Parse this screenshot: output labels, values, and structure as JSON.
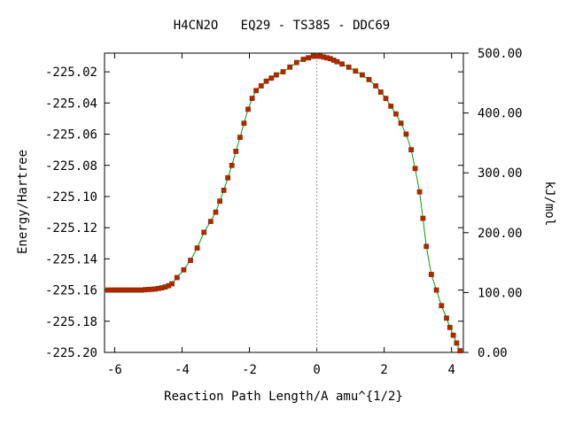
{
  "chart_data": {
    "type": "line",
    "title": "H4CN2O   EQ29 - TS385 - DDC69",
    "xlabel": "Reaction Path Length/A amu^{1/2}",
    "ylabel": "Energy/Hartree",
    "y2label": "kJ/mol",
    "xlim": [
      -6.3,
      4.35
    ],
    "ylim": [
      -225.2,
      -225.008
    ],
    "y2lim": [
      0,
      500
    ],
    "xticks": [
      -6,
      -4,
      -2,
      0,
      2,
      4
    ],
    "xtick_labels": [
      "-6",
      "-4",
      "-2",
      "0",
      "2",
      "4"
    ],
    "yticks": [
      -225.02,
      -225.04,
      -225.06,
      -225.08,
      -225.1,
      -225.12,
      -225.14,
      -225.16,
      -225.18,
      -225.2
    ],
    "ytick_labels": [
      "-225.02",
      "-225.04",
      "-225.06",
      "-225.08",
      "-225.10",
      "-225.12",
      "-225.14",
      "-225.16",
      "-225.18",
      "-225.20"
    ],
    "y2ticks": [
      0,
      100,
      200,
      300,
      400,
      500
    ],
    "y2tick_labels": [
      "0.00",
      "100.00",
      "200.00",
      "300.00",
      "400.00",
      "500.00"
    ],
    "grid": false,
    "ts_marker_x": 0,
    "line_color": "#00a000",
    "marker_color": "#c02000",
    "marker_edge_color": "#7a3a00",
    "series": [
      {
        "x": [
          -6.2,
          -6.1,
          -6.0,
          -5.9,
          -5.8,
          -5.7,
          -5.6,
          -5.5,
          -5.4,
          -5.3,
          -5.2,
          -5.1,
          -5.0,
          -4.9,
          -4.8,
          -4.7,
          -4.6,
          -4.5,
          -4.4,
          -4.3,
          -4.15,
          -3.95,
          -3.75,
          -3.55,
          -3.35,
          -3.15,
          -3.0,
          -2.88,
          -2.76,
          -2.64,
          -2.52,
          -2.4,
          -2.28,
          -2.16,
          -2.04,
          -1.92,
          -1.8,
          -1.65,
          -1.5,
          -1.35,
          -1.2,
          -1.0,
          -0.8,
          -0.6,
          -0.4,
          -0.25,
          -0.1,
          0.0,
          0.1,
          0.2,
          0.3,
          0.4,
          0.5,
          0.6,
          0.75,
          0.95,
          1.15,
          1.35,
          1.55,
          1.75,
          1.9,
          2.05,
          2.2,
          2.35,
          2.5,
          2.65,
          2.8,
          2.92,
          3.05,
          3.15,
          3.25,
          3.4,
          3.55,
          3.7,
          3.85,
          3.95,
          4.05,
          4.15,
          4.25
        ],
        "y": [
          -225.16,
          -225.16,
          -225.16,
          -225.16,
          -225.16,
          -225.16,
          -225.16,
          -225.16,
          -225.16,
          -225.16,
          -225.16,
          -225.1598,
          -225.1596,
          -225.1595,
          -225.1593,
          -225.159,
          -225.1586,
          -225.158,
          -225.1572,
          -225.156,
          -225.152,
          -225.147,
          -225.141,
          -225.133,
          -225.123,
          -225.116,
          -225.11,
          -225.103,
          -225.096,
          -225.088,
          -225.08,
          -225.071,
          -225.062,
          -225.053,
          -225.044,
          -225.037,
          -225.032,
          -225.029,
          -225.026,
          -225.024,
          -225.022,
          -225.02,
          -225.017,
          -225.014,
          -225.012,
          -225.011,
          -225.01,
          -225.01,
          -225.01,
          -225.0105,
          -225.011,
          -225.0115,
          -225.0125,
          -225.0135,
          -225.015,
          -225.017,
          -225.0195,
          -225.022,
          -225.025,
          -225.029,
          -225.033,
          -225.037,
          -225.042,
          -225.047,
          -225.053,
          -225.06,
          -225.07,
          -225.082,
          -225.097,
          -225.114,
          -225.132,
          -225.15,
          -225.16,
          -225.17,
          -225.178,
          -225.184,
          -225.189,
          -225.194,
          -225.199
        ]
      }
    ]
  }
}
